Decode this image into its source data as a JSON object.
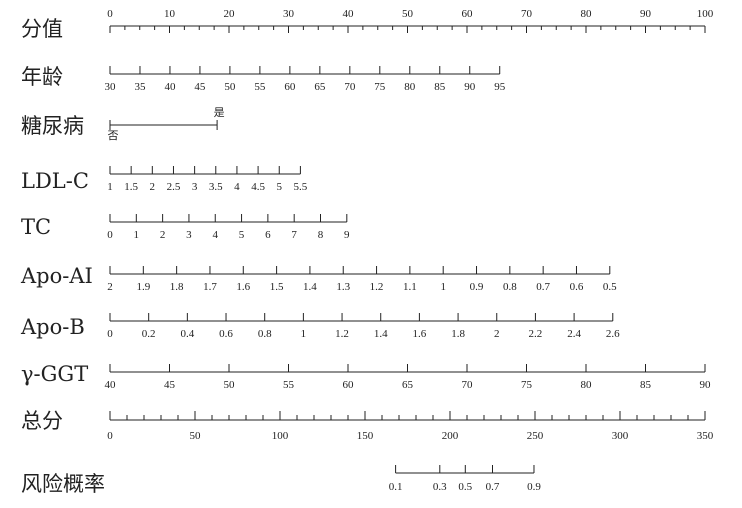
{
  "chart_data": {
    "type": "nomogram",
    "points_scale": {
      "title": "分值",
      "range": [
        0,
        100
      ],
      "labels": [
        0,
        10,
        20,
        30,
        40,
        50,
        60,
        70,
        80,
        90,
        100
      ],
      "minor_step": 2.5
    },
    "variables": [
      {
        "title": "年龄",
        "kind": "linear",
        "domain": [
          30,
          95
        ],
        "points": [
          0,
          65.5
        ],
        "labels": [
          "30",
          "35",
          "40",
          "45",
          "50",
          "55",
          "60",
          "65",
          "70",
          "75",
          "80",
          "85",
          "90",
          "95"
        ]
      },
      {
        "title": "糖尿病",
        "kind": "categorical",
        "categories": [
          {
            "label": "否",
            "points": 0
          },
          {
            "label": "是",
            "points": 18
          }
        ]
      },
      {
        "title": "LDL-C",
        "kind": "linear",
        "domain": [
          1,
          5.5
        ],
        "points": [
          0,
          32
        ],
        "labels": [
          "1",
          "1.5",
          "2",
          "2.5",
          "3",
          "3.5",
          "4",
          "4.5",
          "5",
          "5.5"
        ]
      },
      {
        "title": "TC",
        "kind": "linear",
        "domain": [
          0,
          9
        ],
        "points": [
          0,
          39.8
        ],
        "labels": [
          "0",
          "1",
          "2",
          "3",
          "4",
          "5",
          "6",
          "7",
          "8",
          "9"
        ]
      },
      {
        "title": "Apo-AI",
        "kind": "linear",
        "domain": [
          2,
          0.5
        ],
        "points": [
          0,
          84
        ],
        "labels": [
          "2",
          "1.9",
          "1.8",
          "1.7",
          "1.6",
          "1.5",
          "1.4",
          "1.3",
          "1.2",
          "1.1",
          "1",
          "0.9",
          "0.8",
          "0.7",
          "0.6",
          "0.5"
        ]
      },
      {
        "title": "Apo-B",
        "kind": "linear",
        "domain": [
          0,
          2.6
        ],
        "points": [
          0,
          84.5
        ],
        "labels": [
          "0",
          "0.2",
          "0.4",
          "0.6",
          "0.8",
          "1",
          "1.2",
          "1.4",
          "1.6",
          "1.8",
          "2",
          "2.2",
          "2.4",
          "2.6"
        ]
      },
      {
        "title": "γ-GGT",
        "kind": "linear",
        "domain": [
          40,
          90
        ],
        "points": [
          0,
          100
        ],
        "labels": [
          "40",
          "45",
          "50",
          "55",
          "60",
          "65",
          "70",
          "75",
          "80",
          "85",
          "90"
        ]
      }
    ],
    "total_points": {
      "title": "总分",
      "range": [
        0,
        350
      ],
      "labels": [
        0,
        50,
        100,
        150,
        200,
        250,
        300,
        350
      ],
      "minor_step": 10
    },
    "risk": {
      "title": "风险概率",
      "ticks": [
        {
          "label": "0.1",
          "total_points": 168
        },
        {
          "label": "0.3",
          "total_points": 194
        },
        {
          "label": "0.5",
          "total_points": 209
        },
        {
          "label": "0.7",
          "total_points": 225
        },
        {
          "label": "0.9",
          "total_points": 249.4
        }
      ]
    },
    "color": "#222222"
  }
}
